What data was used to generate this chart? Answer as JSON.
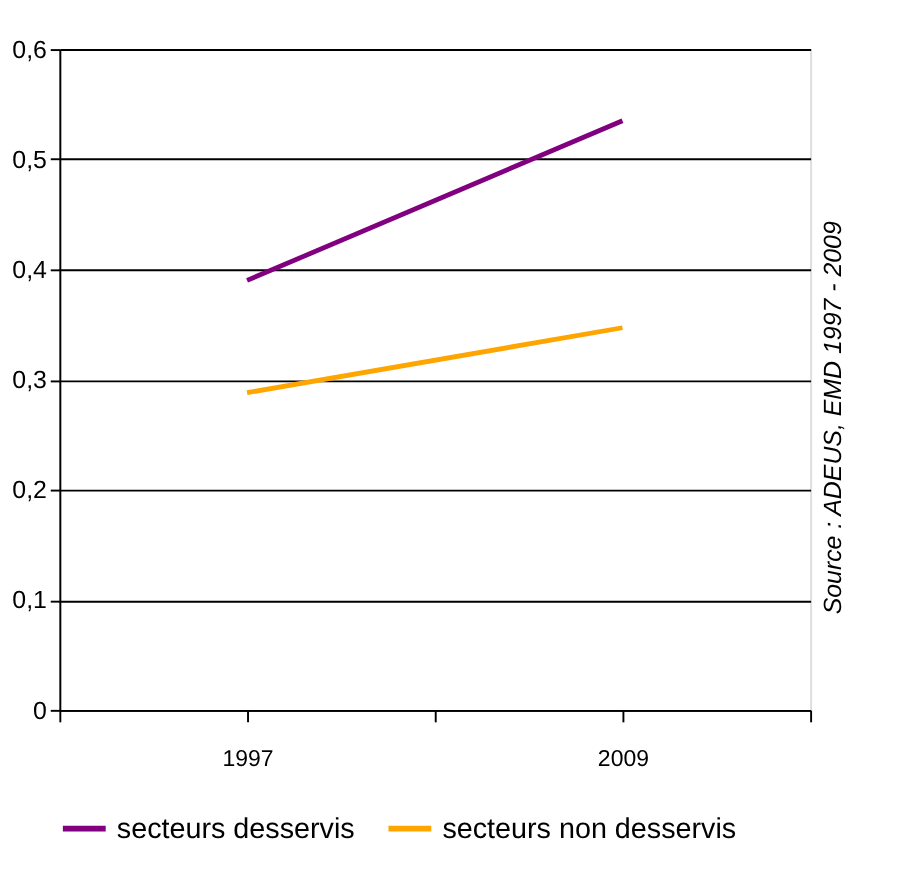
{
  "chart_data": {
    "type": "line",
    "categories": [
      "1997",
      "2009"
    ],
    "series": [
      {
        "name": "secteurs desservis",
        "color": "#800080",
        "values": [
          0.39,
          0.535
        ]
      },
      {
        "name": "secteurs non desservis",
        "color": "#ffa500",
        "values": [
          0.288,
          0.347
        ]
      }
    ],
    "ylim": [
      0,
      0.6
    ],
    "yticks": [
      {
        "value": 0,
        "label": "0"
      },
      {
        "value": 0.1,
        "label": "0,1"
      },
      {
        "value": 0.2,
        "label": "0,2"
      },
      {
        "value": 0.3,
        "label": "0,3"
      },
      {
        "value": 0.4,
        "label": "0,4"
      },
      {
        "value": 0.5,
        "label": "0,5"
      },
      {
        "value": 0.6,
        "label": "0,6"
      }
    ],
    "grid": "y",
    "legend": "bottom",
    "marker": "none",
    "line_style": "solid",
    "annotations": [
      "Source : ADEUS, EMD 1997 - 2009"
    ]
  }
}
